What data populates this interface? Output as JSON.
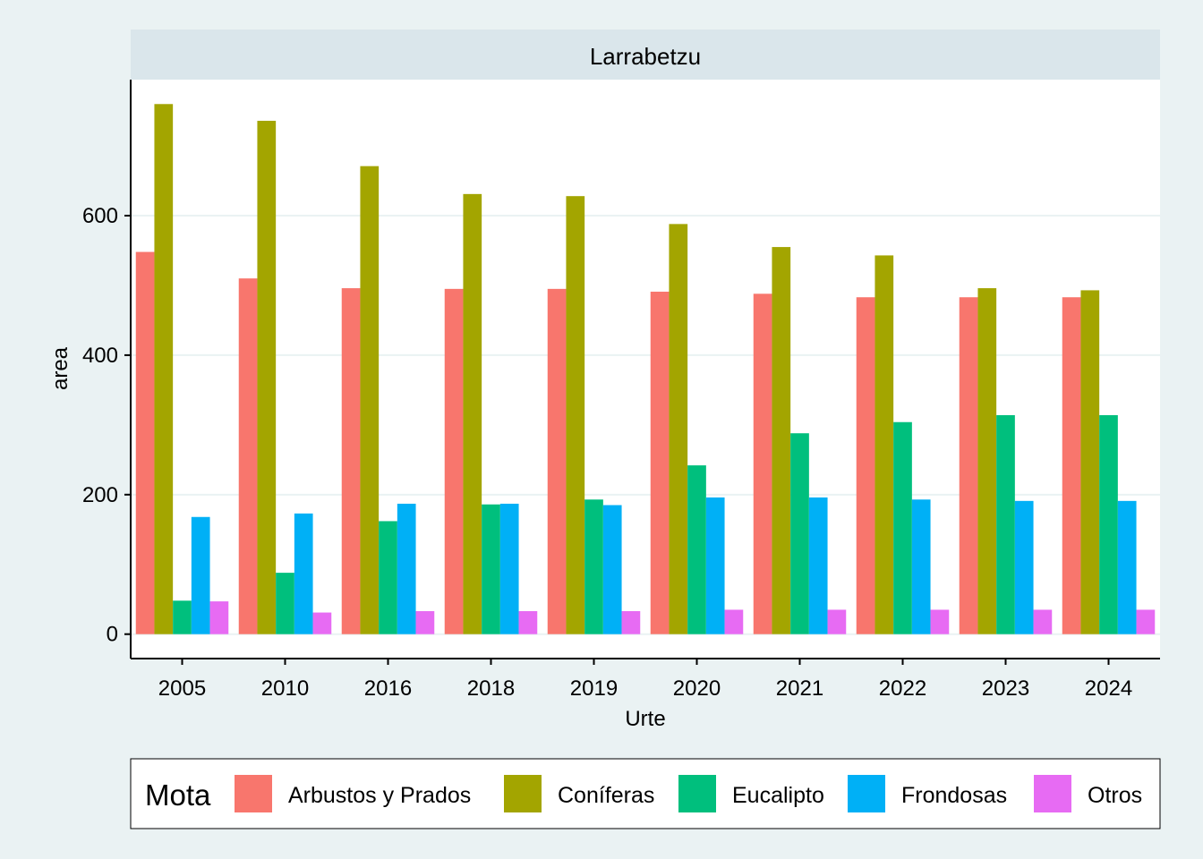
{
  "chart_data": {
    "type": "bar",
    "title": "Larrabetzu",
    "xlabel": "Urte",
    "ylabel": "area",
    "ylim": [
      -35,
      795
    ],
    "yticks": [
      0,
      200,
      400,
      600
    ],
    "grid": true,
    "legend_position": "bottom",
    "legend_title": "Mota",
    "categories": [
      "2005",
      "2010",
      "2016",
      "2018",
      "2019",
      "2020",
      "2021",
      "2022",
      "2023",
      "2024"
    ],
    "series": [
      {
        "name": "Arbustos y Prados",
        "color": "#f8766d",
        "values": [
          548,
          510,
          496,
          495,
          495,
          491,
          488,
          483,
          483,
          483
        ]
      },
      {
        "name": "Coníferas",
        "color": "#a3a500",
        "values": [
          760,
          736,
          671,
          631,
          628,
          588,
          555,
          543,
          496,
          493
        ]
      },
      {
        "name": "Eucalipto",
        "color": "#00bf7d",
        "values": [
          48,
          88,
          162,
          186,
          193,
          242,
          288,
          304,
          314,
          314
        ]
      },
      {
        "name": "Frondosas",
        "color": "#00b0f6",
        "values": [
          168,
          173,
          187,
          187,
          185,
          196,
          196,
          193,
          191,
          191
        ]
      },
      {
        "name": "Otros",
        "color": "#e76bf3",
        "values": [
          47,
          31,
          33,
          33,
          33,
          35,
          35,
          35,
          35,
          35
        ]
      }
    ]
  }
}
